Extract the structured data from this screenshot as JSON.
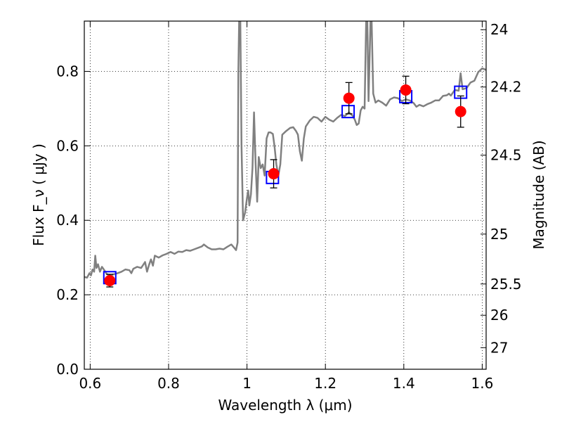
{
  "chart_data": {
    "type": "line",
    "xlabel": "Wavelength  λ (μm)",
    "ylabel": "Flux  F_ν  ( μJy )",
    "y2label": "Magnitude (AB)",
    "xlim": [
      0.585,
      1.61
    ],
    "ylim": [
      0.0,
      0.935
    ],
    "grid": true,
    "x_ticks": [
      0.6,
      0.8,
      1.0,
      1.2,
      1.4,
      1.6
    ],
    "x_tick_labels": [
      "0.6",
      "0.8",
      "1",
      "1.2",
      "1.4",
      "1.6"
    ],
    "y_ticks": [
      0.0,
      0.2,
      0.4,
      0.6,
      0.8
    ],
    "y_tick_labels": [
      "0.0",
      "0.2",
      "0.4",
      "0.6",
      "0.8"
    ],
    "y2_ticks": [
      {
        "label": "24",
        "flux": 0.912
      },
      {
        "label": "24.2",
        "flux": 0.758
      },
      {
        "label": "24.5",
        "flux": 0.575
      },
      {
        "label": "25",
        "flux": 0.363
      },
      {
        "label": "25.5",
        "flux": 0.229
      },
      {
        "label": "26",
        "flux": 0.145
      },
      {
        "label": "27",
        "flux": 0.058
      }
    ],
    "series": [
      {
        "style": "line",
        "color": "#808080",
        "points": [
          [
            0.585,
            0.248
          ],
          [
            0.592,
            0.246
          ],
          [
            0.598,
            0.258
          ],
          [
            0.602,
            0.252
          ],
          [
            0.606,
            0.268
          ],
          [
            0.61,
            0.262
          ],
          [
            0.613,
            0.305
          ],
          [
            0.616,
            0.272
          ],
          [
            0.62,
            0.282
          ],
          [
            0.625,
            0.262
          ],
          [
            0.63,
            0.275
          ],
          [
            0.636,
            0.266
          ],
          [
            0.642,
            0.256
          ],
          [
            0.65,
            0.252
          ],
          [
            0.66,
            0.255
          ],
          [
            0.67,
            0.258
          ],
          [
            0.68,
            0.262
          ],
          [
            0.69,
            0.268
          ],
          [
            0.7,
            0.266
          ],
          [
            0.705,
            0.258
          ],
          [
            0.71,
            0.27
          ],
          [
            0.72,
            0.275
          ],
          [
            0.73,
            0.272
          ],
          [
            0.735,
            0.28
          ],
          [
            0.74,
            0.288
          ],
          [
            0.745,
            0.262
          ],
          [
            0.75,
            0.28
          ],
          [
            0.755,
            0.295
          ],
          [
            0.76,
            0.278
          ],
          [
            0.765,
            0.305
          ],
          [
            0.775,
            0.3
          ],
          [
            0.785,
            0.306
          ],
          [
            0.795,
            0.31
          ],
          [
            0.805,
            0.315
          ],
          [
            0.815,
            0.31
          ],
          [
            0.825,
            0.316
          ],
          [
            0.835,
            0.315
          ],
          [
            0.845,
            0.32
          ],
          [
            0.855,
            0.318
          ],
          [
            0.865,
            0.322
          ],
          [
            0.875,
            0.326
          ],
          [
            0.885,
            0.33
          ],
          [
            0.89,
            0.335
          ],
          [
            0.9,
            0.327
          ],
          [
            0.91,
            0.322
          ],
          [
            0.92,
            0.322
          ],
          [
            0.93,
            0.324
          ],
          [
            0.94,
            0.322
          ],
          [
            0.95,
            0.329
          ],
          [
            0.96,
            0.335
          ],
          [
            0.966,
            0.328
          ],
          [
            0.972,
            0.32
          ],
          [
            0.976,
            0.34
          ],
          [
            0.978,
            0.8
          ],
          [
            0.98,
            0.935
          ],
          [
            0.983,
            0.935
          ],
          [
            0.986,
            0.6
          ],
          [
            0.99,
            0.4
          ],
          [
            0.995,
            0.42
          ],
          [
            1.0,
            0.46
          ],
          [
            1.003,
            0.48
          ],
          [
            1.006,
            0.44
          ],
          [
            1.01,
            0.47
          ],
          [
            1.014,
            0.54
          ],
          [
            1.018,
            0.69
          ],
          [
            1.022,
            0.55
          ],
          [
            1.026,
            0.45
          ],
          [
            1.03,
            0.57
          ],
          [
            1.035,
            0.54
          ],
          [
            1.04,
            0.55
          ],
          [
            1.045,
            0.52
          ],
          [
            1.05,
            0.62
          ],
          [
            1.055,
            0.636
          ],
          [
            1.06,
            0.636
          ],
          [
            1.066,
            0.632
          ],
          [
            1.07,
            0.6
          ],
          [
            1.075,
            0.55
          ],
          [
            1.08,
            0.52
          ],
          [
            1.085,
            0.55
          ],
          [
            1.09,
            0.63
          ],
          [
            1.1,
            0.64
          ],
          [
            1.11,
            0.648
          ],
          [
            1.118,
            0.65
          ],
          [
            1.125,
            0.64
          ],
          [
            1.13,
            0.63
          ],
          [
            1.135,
            0.585
          ],
          [
            1.14,
            0.56
          ],
          [
            1.145,
            0.62
          ],
          [
            1.15,
            0.652
          ],
          [
            1.16,
            0.668
          ],
          [
            1.17,
            0.678
          ],
          [
            1.18,
            0.675
          ],
          [
            1.19,
            0.665
          ],
          [
            1.2,
            0.678
          ],
          [
            1.21,
            0.67
          ],
          [
            1.22,
            0.665
          ],
          [
            1.23,
            0.675
          ],
          [
            1.24,
            0.683
          ],
          [
            1.25,
            0.68
          ],
          [
            1.26,
            0.69
          ],
          [
            1.27,
            0.68
          ],
          [
            1.275,
            0.67
          ],
          [
            1.28,
            0.656
          ],
          [
            1.285,
            0.66
          ],
          [
            1.29,
            0.695
          ],
          [
            1.295,
            0.705
          ],
          [
            1.3,
            0.7
          ],
          [
            1.304,
            0.935
          ],
          [
            1.307,
            0.935
          ],
          [
            1.31,
            0.72
          ],
          [
            1.315,
            0.935
          ],
          [
            1.318,
            0.935
          ],
          [
            1.322,
            0.74
          ],
          [
            1.328,
            0.716
          ],
          [
            1.335,
            0.722
          ],
          [
            1.345,
            0.716
          ],
          [
            1.355,
            0.708
          ],
          [
            1.365,
            0.725
          ],
          [
            1.375,
            0.73
          ],
          [
            1.385,
            0.728
          ],
          [
            1.395,
            0.72
          ],
          [
            1.405,
            0.725
          ],
          [
            1.415,
            0.722
          ],
          [
            1.425,
            0.715
          ],
          [
            1.432,
            0.705
          ],
          [
            1.44,
            0.71
          ],
          [
            1.45,
            0.706
          ],
          [
            1.46,
            0.712
          ],
          [
            1.47,
            0.716
          ],
          [
            1.48,
            0.722
          ],
          [
            1.49,
            0.722
          ],
          [
            1.5,
            0.734
          ],
          [
            1.51,
            0.736
          ],
          [
            1.515,
            0.74
          ],
          [
            1.52,
            0.735
          ],
          [
            1.53,
            0.75
          ],
          [
            1.54,
            0.748
          ],
          [
            1.545,
            0.795
          ],
          [
            1.55,
            0.752
          ],
          [
            1.56,
            0.755
          ],
          [
            1.57,
            0.77
          ],
          [
            1.58,
            0.775
          ],
          [
            1.59,
            0.798
          ],
          [
            1.6,
            0.808
          ],
          [
            1.61,
            0.804
          ]
        ]
      },
      {
        "style": "open-square",
        "color": "#0000ff",
        "x": [
          0.65,
          1.065,
          1.258,
          1.405,
          1.545
        ],
        "y": [
          0.246,
          0.515,
          0.692,
          0.732,
          0.744
        ]
      },
      {
        "style": "filled-circle",
        "color": "#ff0000",
        "x": [
          0.65,
          1.068,
          1.26,
          1.405,
          1.545
        ],
        "y": [
          0.238,
          0.525,
          0.728,
          0.75,
          0.692
        ],
        "err": [
          0.017,
          0.038,
          0.042,
          0.037,
          0.042
        ],
        "err_color": "#000000"
      }
    ]
  }
}
